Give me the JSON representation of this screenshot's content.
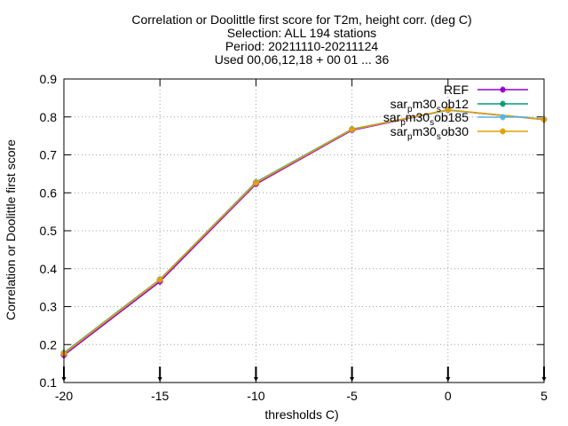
{
  "chart_data": {
    "type": "line",
    "title_lines": [
      "Correlation or Doolittle first score  for T2m, height corr. (deg C)",
      "Selection: ALL    194 stations",
      "Period: 20211110-20211124",
      "Used 00,06,12,18 + 00 01 ... 36"
    ],
    "xlabel": "thresholds C)",
    "ylabel": "Correlation or Doolittle first score",
    "xlim": [
      -20,
      5
    ],
    "ylim": [
      0.1,
      0.9
    ],
    "xticks": [
      -20,
      -15,
      -10,
      -5,
      0,
      5
    ],
    "yticks": [
      0.1,
      0.2,
      0.3,
      0.4,
      0.5,
      0.6,
      0.7,
      0.8,
      0.9
    ],
    "xtick_labels": [
      "-20",
      "-15",
      "-10",
      "-5",
      "0",
      "5"
    ],
    "ytick_labels": [
      "0.1",
      "0.2",
      "0.3",
      "0.4",
      "0.5",
      "0.6",
      "0.7",
      "0.8",
      "0.9"
    ],
    "grid": true,
    "legend_position": "top-right",
    "x": [
      -20,
      -15,
      -10,
      -5,
      0,
      5
    ],
    "series": [
      {
        "name": "REF",
        "legend_label": {
          "base": "REF",
          "sub": ""
        },
        "color": "#9400d3",
        "values": [
          0.172,
          0.366,
          0.623,
          0.765,
          0.818,
          0.793
        ]
      },
      {
        "name": "sar_pm30_sob12",
        "legend_label": {
          "base": "sar",
          "sub": "p",
          "mid": "m30",
          "sub2": "s",
          "tail": "ob12"
        },
        "color": "#009e73",
        "values": [
          0.178,
          0.372,
          0.628,
          0.768,
          0.818,
          0.794
        ]
      },
      {
        "name": "sar_pm30_sob185",
        "legend_label": {
          "base": "sar",
          "sub": "p",
          "mid": "m30",
          "sub2": "s",
          "tail": "ob185"
        },
        "color": "#56b4e9",
        "values": [
          0.176,
          0.371,
          0.627,
          0.767,
          0.818,
          0.794
        ]
      },
      {
        "name": "sar_pm30_sob30",
        "legend_label": {
          "base": "sar",
          "sub": "p",
          "mid": "m30",
          "sub2": "s",
          "tail": "ob30"
        },
        "color": "#e69f00",
        "values": [
          0.176,
          0.371,
          0.626,
          0.767,
          0.819,
          0.793
        ]
      }
    ]
  }
}
